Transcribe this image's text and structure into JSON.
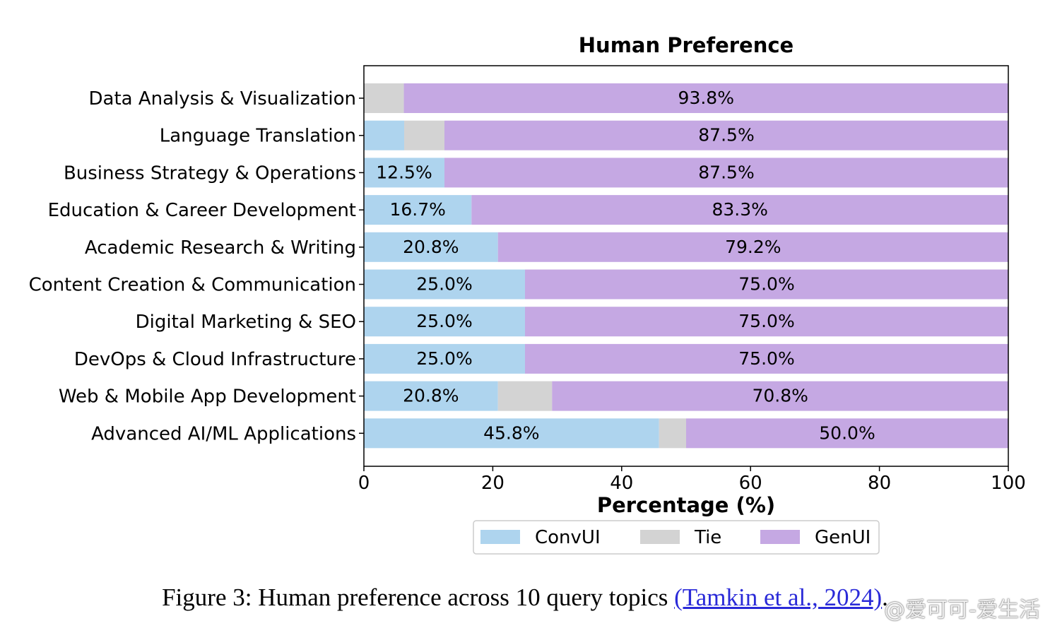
{
  "chart_data": {
    "type": "bar",
    "orientation": "horizontal",
    "stacked": true,
    "title": "Human Preference",
    "xlabel": "Percentage (%)",
    "ylabel": "",
    "xlim": [
      0,
      100
    ],
    "xticks": [
      0,
      20,
      40,
      60,
      80,
      100
    ],
    "grid": false,
    "legend_position": "bottom",
    "categories": [
      "Data Analysis & Visualization",
      "Language Translation",
      "Business Strategy & Operations",
      "Education & Career Development",
      "Academic Research & Writing",
      "Content Creation & Communication",
      "Digital Marketing & SEO",
      "DevOps & Cloud Infrastructure",
      "Web & Mobile App Development",
      "Advanced AI/ML Applications"
    ],
    "series": [
      {
        "name": "ConvUI",
        "color": "#aed4ee",
        "values": [
          0,
          6.25,
          12.5,
          16.7,
          20.8,
          25.0,
          25.0,
          25.0,
          20.8,
          45.8
        ],
        "labels": [
          "",
          "",
          "12.5%",
          "16.7%",
          "20.8%",
          "25.0%",
          "25.0%",
          "25.0%",
          "20.8%",
          "45.8%"
        ]
      },
      {
        "name": "Tie",
        "color": "#d3d3d3",
        "values": [
          6.2,
          6.25,
          0,
          0,
          0,
          0,
          0,
          0,
          8.4,
          4.2
        ],
        "labels": [
          "",
          "",
          "",
          "",
          "",
          "",
          "",
          "",
          "",
          ""
        ]
      },
      {
        "name": "GenUI",
        "color": "#c5a8e3",
        "values": [
          93.8,
          87.5,
          87.5,
          83.3,
          79.2,
          75.0,
          75.0,
          75.0,
          70.8,
          50.0
        ],
        "labels": [
          "93.8%",
          "87.5%",
          "87.5%",
          "83.3%",
          "79.2%",
          "75.0%",
          "75.0%",
          "75.0%",
          "70.8%",
          "50.0%"
        ]
      }
    ]
  },
  "caption": {
    "text": "Figure 3: Human preference across 10 query topics ",
    "link": "(Tamkin et al., 2024)",
    "end": "."
  },
  "watermark": "@爱可可-爱生活"
}
